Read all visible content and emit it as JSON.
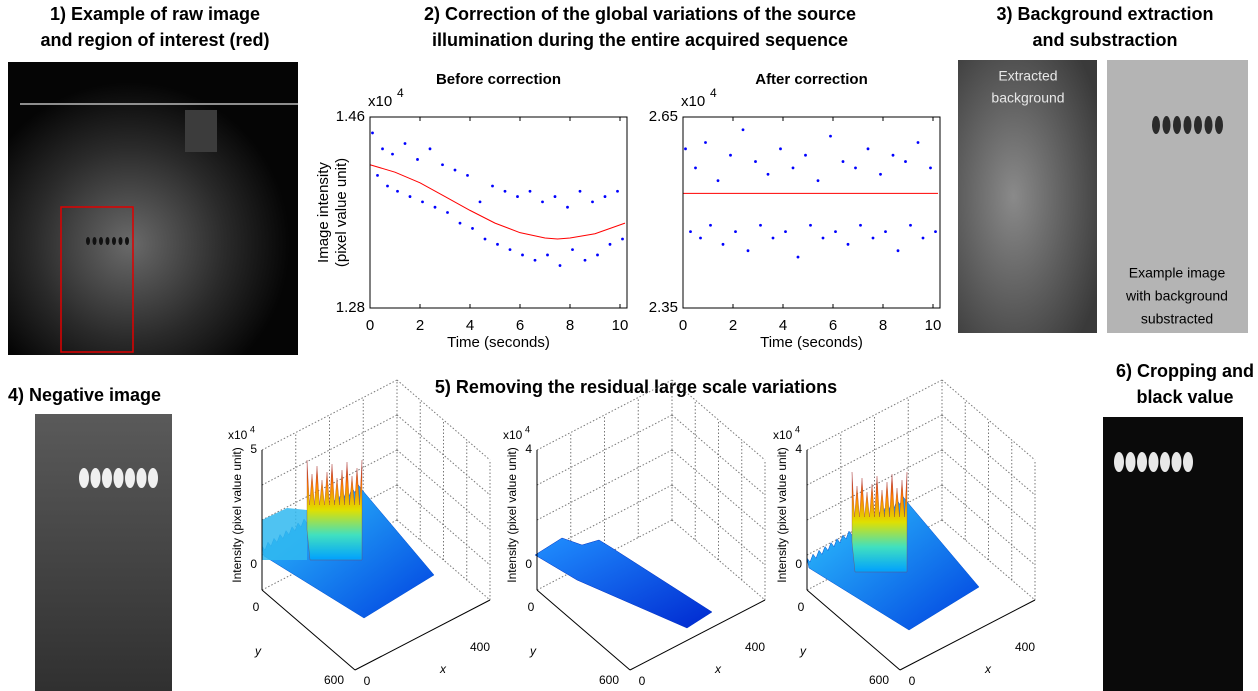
{
  "panels": {
    "p1": {
      "title": [
        "1) Example of raw image",
        "and region of interest (red)"
      ]
    },
    "p2": {
      "title": [
        "2) Correction of the global variations of the source",
        "illumination during the entire acquired sequence"
      ]
    },
    "p3": {
      "title": [
        "3) Background extraction",
        "and substraction"
      ],
      "left_label": [
        "Extracted",
        "background"
      ],
      "right_label": [
        "Example image",
        "with background",
        "substracted"
      ]
    },
    "p4": {
      "title": "4) Negative image"
    },
    "p5": {
      "title": "5) Removing the residual large scale variations",
      "plots": [
        {
          "multiplier": {
            "base": "x10",
            "exp": "4"
          },
          "zticks": [
            5,
            0
          ],
          "zlabel": "Intensity (pixel value unit)",
          "yticks": [
            0,
            600
          ],
          "ylabel": "y",
          "xticks": [
            0,
            400
          ],
          "xlabel": "x"
        },
        {
          "multiplier": {
            "base": "x10",
            "exp": "4"
          },
          "zticks": [
            4,
            0
          ],
          "zlabel": "Intensity (pixel value unit)",
          "yticks": [
            0,
            600
          ],
          "ylabel": "y",
          "xticks": [
            0,
            400
          ],
          "xlabel": "x"
        },
        {
          "multiplier": {
            "base": "x10",
            "exp": "4"
          },
          "zticks": [
            4,
            0
          ],
          "zlabel": "Intensity (pixel value unit)",
          "yticks": [
            0,
            600
          ],
          "ylabel": "y",
          "xticks": [
            0,
            400
          ],
          "xlabel": "x"
        }
      ]
    },
    "p6": {
      "title": [
        "6) Cropping and",
        "black value"
      ]
    }
  },
  "chart_data": [
    {
      "type": "scatter",
      "title": "Before correction",
      "xlabel": "Time (seconds)",
      "ylabel": [
        "Image intensity",
        "(pixel value unit)"
      ],
      "multiplier": {
        "base": "x10",
        "exp": "4"
      },
      "xlim": [
        0,
        10.28
      ],
      "xticks": [
        0,
        2,
        4,
        6,
        8,
        10
      ],
      "ylim": [
        1.28,
        1.46
      ],
      "yticks": [
        1.28,
        1.46
      ],
      "series": [
        {
          "color": "#0000ff",
          "style": "points",
          "x": [
            0.1,
            0.3,
            0.5,
            0.7,
            0.9,
            1.1,
            1.4,
            1.6,
            1.9,
            2.1,
            2.4,
            2.6,
            2.9,
            3.1,
            3.4,
            3.6,
            3.9,
            4.1,
            4.4,
            4.6,
            4.9,
            5.1,
            5.4,
            5.6,
            5.9,
            6.1,
            6.4,
            6.6,
            6.9,
            7.1,
            7.4,
            7.6,
            7.9,
            8.1,
            8.4,
            8.6,
            8.9,
            9.1,
            9.4,
            9.6,
            9.9,
            10.1
          ],
          "values": [
            1.445,
            1.405,
            1.43,
            1.395,
            1.425,
            1.39,
            1.435,
            1.385,
            1.42,
            1.38,
            1.43,
            1.375,
            1.415,
            1.37,
            1.41,
            1.36,
            1.405,
            1.355,
            1.38,
            1.345,
            1.395,
            1.34,
            1.39,
            1.335,
            1.385,
            1.33,
            1.39,
            1.325,
            1.38,
            1.33,
            1.385,
            1.32,
            1.375,
            1.335,
            1.39,
            1.325,
            1.38,
            1.33,
            1.385,
            1.34,
            1.39,
            1.345
          ]
        },
        {
          "color": "#ff0000",
          "style": "line",
          "x": [
            0,
            1,
            2,
            3,
            4,
            5,
            6,
            7,
            7.5,
            8,
            9,
            10.2
          ],
          "values": [
            1.415,
            1.408,
            1.398,
            1.385,
            1.372,
            1.36,
            1.351,
            1.346,
            1.345,
            1.346,
            1.35,
            1.36
          ]
        }
      ]
    },
    {
      "type": "scatter",
      "title": "After correction",
      "xlabel": "Time (seconds)",
      "multiplier": {
        "base": "x10",
        "exp": "4"
      },
      "xlim": [
        0,
        10.28
      ],
      "xticks": [
        0,
        2,
        4,
        6,
        8,
        10
      ],
      "ylim": [
        2.35,
        2.65
      ],
      "yticks": [
        2.35,
        2.65
      ],
      "series": [
        {
          "color": "#0000ff",
          "style": "points",
          "x": [
            0.1,
            0.3,
            0.5,
            0.7,
            0.9,
            1.1,
            1.4,
            1.6,
            1.9,
            2.1,
            2.4,
            2.6,
            2.9,
            3.1,
            3.4,
            3.6,
            3.9,
            4.1,
            4.4,
            4.6,
            4.9,
            5.1,
            5.4,
            5.6,
            5.9,
            6.1,
            6.4,
            6.6,
            6.9,
            7.1,
            7.4,
            7.6,
            7.9,
            8.1,
            8.4,
            8.6,
            8.9,
            9.1,
            9.4,
            9.6,
            9.9,
            10.1
          ],
          "values": [
            2.6,
            2.47,
            2.57,
            2.46,
            2.61,
            2.48,
            2.55,
            2.45,
            2.59,
            2.47,
            2.63,
            2.44,
            2.58,
            2.48,
            2.56,
            2.46,
            2.6,
            2.47,
            2.57,
            2.43,
            2.59,
            2.48,
            2.55,
            2.46,
            2.62,
            2.47,
            2.58,
            2.45,
            2.57,
            2.48,
            2.6,
            2.46,
            2.56,
            2.47,
            2.59,
            2.44,
            2.58,
            2.48,
            2.61,
            2.46,
            2.57,
            2.47
          ]
        },
        {
          "color": "#ff0000",
          "style": "line",
          "x": [
            0,
            10.2
          ],
          "values": [
            2.53,
            2.53
          ]
        }
      ]
    }
  ]
}
